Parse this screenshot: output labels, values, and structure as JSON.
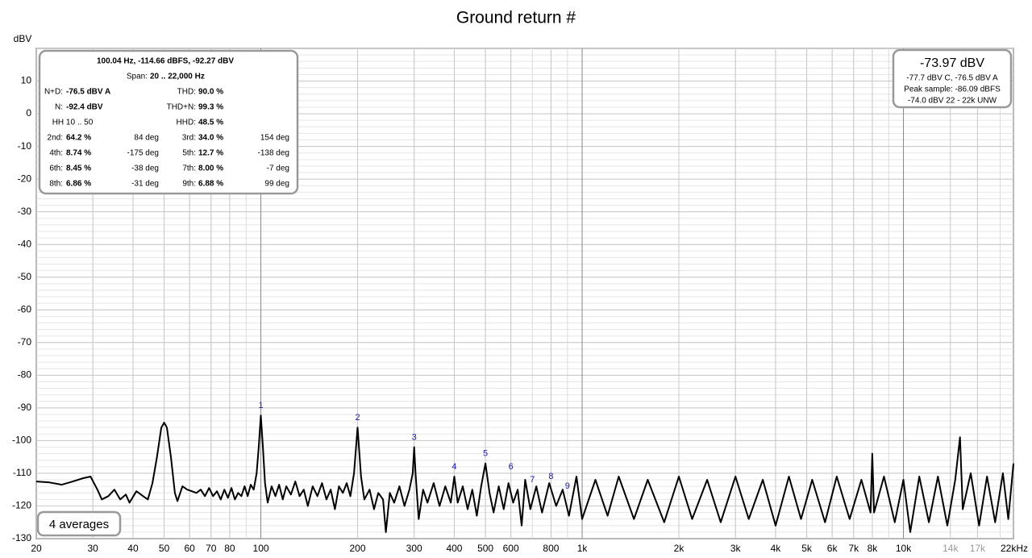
{
  "chart_data": {
    "type": "line",
    "title": "Ground return #",
    "ylabel": "dBV",
    "xscale": "log",
    "grid": true,
    "color": "#000000",
    "xlim": [
      20,
      22000
    ],
    "ylim": [
      -130,
      20
    ],
    "yticks": [
      10,
      0,
      -10,
      -20,
      -30,
      -40,
      -50,
      -60,
      -70,
      -80,
      -90,
      -100,
      -110,
      -120,
      -130
    ],
    "xticks": [
      20,
      30,
      40,
      50,
      60,
      70,
      80,
      100,
      200,
      300,
      400,
      500,
      600,
      800,
      {
        "value": 1000,
        "label": "1k"
      },
      {
        "value": 2000,
        "label": "2k"
      },
      {
        "value": 3000,
        "label": "3k"
      },
      {
        "value": 4000,
        "label": "4k"
      },
      {
        "value": 5000,
        "label": "5k"
      },
      {
        "value": 6000,
        "label": "6k"
      },
      {
        "value": 7000,
        "label": "7k"
      },
      {
        "value": 8000,
        "label": "8k"
      },
      {
        "value": 10000,
        "label": "10k"
      },
      {
        "value": 14000,
        "label": "14k",
        "color": "#999999"
      },
      {
        "value": 17000,
        "label": "17k",
        "color": "#999999"
      },
      {
        "value": 22000,
        "label": "22kHz"
      }
    ],
    "x": [
      20,
      22,
      24,
      26,
      28,
      29.5,
      31,
      32,
      33.5,
      35,
      36.5,
      38,
      39,
      41,
      43,
      44.5,
      46,
      47.5,
      49,
      50,
      51,
      52.5,
      54,
      55,
      57,
      59,
      61,
      63,
      65,
      67,
      69,
      71,
      73,
      75,
      77,
      79,
      81,
      83,
      85,
      87,
      89,
      91,
      93,
      95,
      97,
      98.5,
      100,
      101.5,
      103,
      105,
      108,
      111,
      114,
      117,
      120,
      124,
      128,
      132,
      136,
      140,
      145,
      150,
      155,
      160,
      165,
      170,
      175,
      180,
      185,
      190,
      195,
      200,
      205,
      210,
      218,
      225,
      232,
      240,
      245,
      252,
      260,
      270,
      280,
      290,
      297,
      300,
      303,
      310,
      320,
      330,
      345,
      360,
      375,
      390,
      400,
      410,
      425,
      440,
      455,
      470,
      485,
      500,
      515,
      530,
      550,
      570,
      590,
      610,
      630,
      648,
      665,
      690,
      720,
      750,
      790,
      830,
      870,
      910,
      960,
      1000,
      1100,
      1200,
      1300,
      1450,
      1600,
      1800,
      2000,
      2200,
      2450,
      2700,
      3000,
      3300,
      3650,
      4000,
      4400,
      4800,
      5200,
      5700,
      6200,
      6800,
      7400,
      7900,
      8000,
      8100,
      8700,
      9400,
      10000,
      10500,
      11200,
      12000,
      12800,
      13700,
      14500,
      15000,
      15300,
      16200,
      17200,
      18200,
      19300,
      20400,
      21200,
      22000
    ],
    "values": [
      -112.5,
      -112.8,
      -113.5,
      -112.5,
      -111.5,
      -111,
      -115,
      -118,
      -117,
      -115,
      -118,
      -116.5,
      -119,
      -115.5,
      -117,
      -118,
      -113,
      -105,
      -96,
      -94.5,
      -96,
      -105,
      -116,
      -118.5,
      -114,
      -115,
      -115.5,
      -116,
      -115,
      -117,
      -114.5,
      -117,
      -115.5,
      -118,
      -115,
      -117.5,
      -114.5,
      -118,
      -116,
      -117,
      -114,
      -117,
      -113.5,
      -115,
      -110,
      -102,
      -92.3,
      -102,
      -113,
      -119,
      -114,
      -117,
      -113.5,
      -118,
      -114,
      -116.5,
      -112.5,
      -117,
      -115,
      -120,
      -114,
      -117,
      -113,
      -118,
      -115,
      -121,
      -114,
      -116,
      -113,
      -117,
      -110,
      -96,
      -111,
      -118,
      -115,
      -121,
      -116,
      -118,
      -128,
      -116,
      -119,
      -114,
      -120,
      -115,
      -110,
      -102,
      -110,
      -124,
      -115,
      -119,
      -113,
      -120,
      -114,
      -119,
      -111,
      -119,
      -114,
      -121,
      -115,
      -123,
      -114,
      -107,
      -116,
      -122,
      -114,
      -121,
      -113,
      -119,
      -115,
      -126,
      -112,
      -121,
      -114,
      -122,
      -113,
      -120,
      -115,
      -123,
      -111,
      -124,
      -112,
      -123,
      -111,
      -124,
      -112,
      -125,
      -111,
      -124,
      -112,
      -125,
      -111,
      -124,
      -112,
      -126,
      -111,
      -124,
      -112,
      -125,
      -111,
      -124,
      -112,
      -122,
      -104,
      -122,
      -111,
      -125,
      -112,
      -128,
      -111,
      -125,
      -111,
      -126,
      -112,
      -99,
      -121,
      -110,
      -126,
      -111,
      -125,
      -110,
      -124,
      -107
    ],
    "markers": [
      {
        "label": "1",
        "x": 100,
        "y": -92.3
      },
      {
        "label": "2",
        "x": 200,
        "y": -96
      },
      {
        "label": "3",
        "x": 300,
        "y": -102
      },
      {
        "label": "4",
        "x": 400,
        "y": -111
      },
      {
        "label": "5",
        "x": 500,
        "y": -107
      },
      {
        "label": "6",
        "x": 600,
        "y": -111
      },
      {
        "label": "7",
        "x": 700,
        "y": -115
      },
      {
        "label": "8",
        "x": 800,
        "y": -114
      },
      {
        "label": "9",
        "x": 900,
        "y": -117
      }
    ]
  },
  "info_panel": {
    "header": "100.04 Hz, -114.66 dBFS, -92.27 dBV",
    "span": [
      "Span:",
      "20 .. 22,000 Hz"
    ],
    "rows": [
      [
        "N+D:",
        "-76.5 dBV A",
        null,
        "THD:",
        "90.0 %",
        null
      ],
      [
        "N:",
        "-92.4 dBV",
        null,
        "THD+N:",
        "99.3 %",
        null
      ],
      [
        "HH 10 .. 50",
        null,
        null,
        "HHD:",
        "48.5 %",
        null
      ],
      [
        "2nd:",
        "64.2 %",
        "84 deg",
        "3rd:",
        "34.0 %",
        "154 deg"
      ],
      [
        "4th:",
        "8.74 %",
        "-175 deg",
        "5th:",
        "12.7 %",
        "-138 deg"
      ],
      [
        "6th:",
        "8.45 %",
        "-38 deg",
        "7th:",
        "8.00 %",
        "-7 deg"
      ],
      [
        "8th:",
        "6.86 %",
        "-31 deg",
        "9th:",
        "6.88 %",
        "99 deg"
      ]
    ]
  },
  "level_panel": {
    "main": "-73.97 dBV",
    "lines": [
      "-77.7 dBV C, -76.5 dBV A",
      "Peak sample: -86.09 dBFS",
      "-74.0 dBV 22 - 22k UNW"
    ]
  },
  "averages": "4 averages"
}
